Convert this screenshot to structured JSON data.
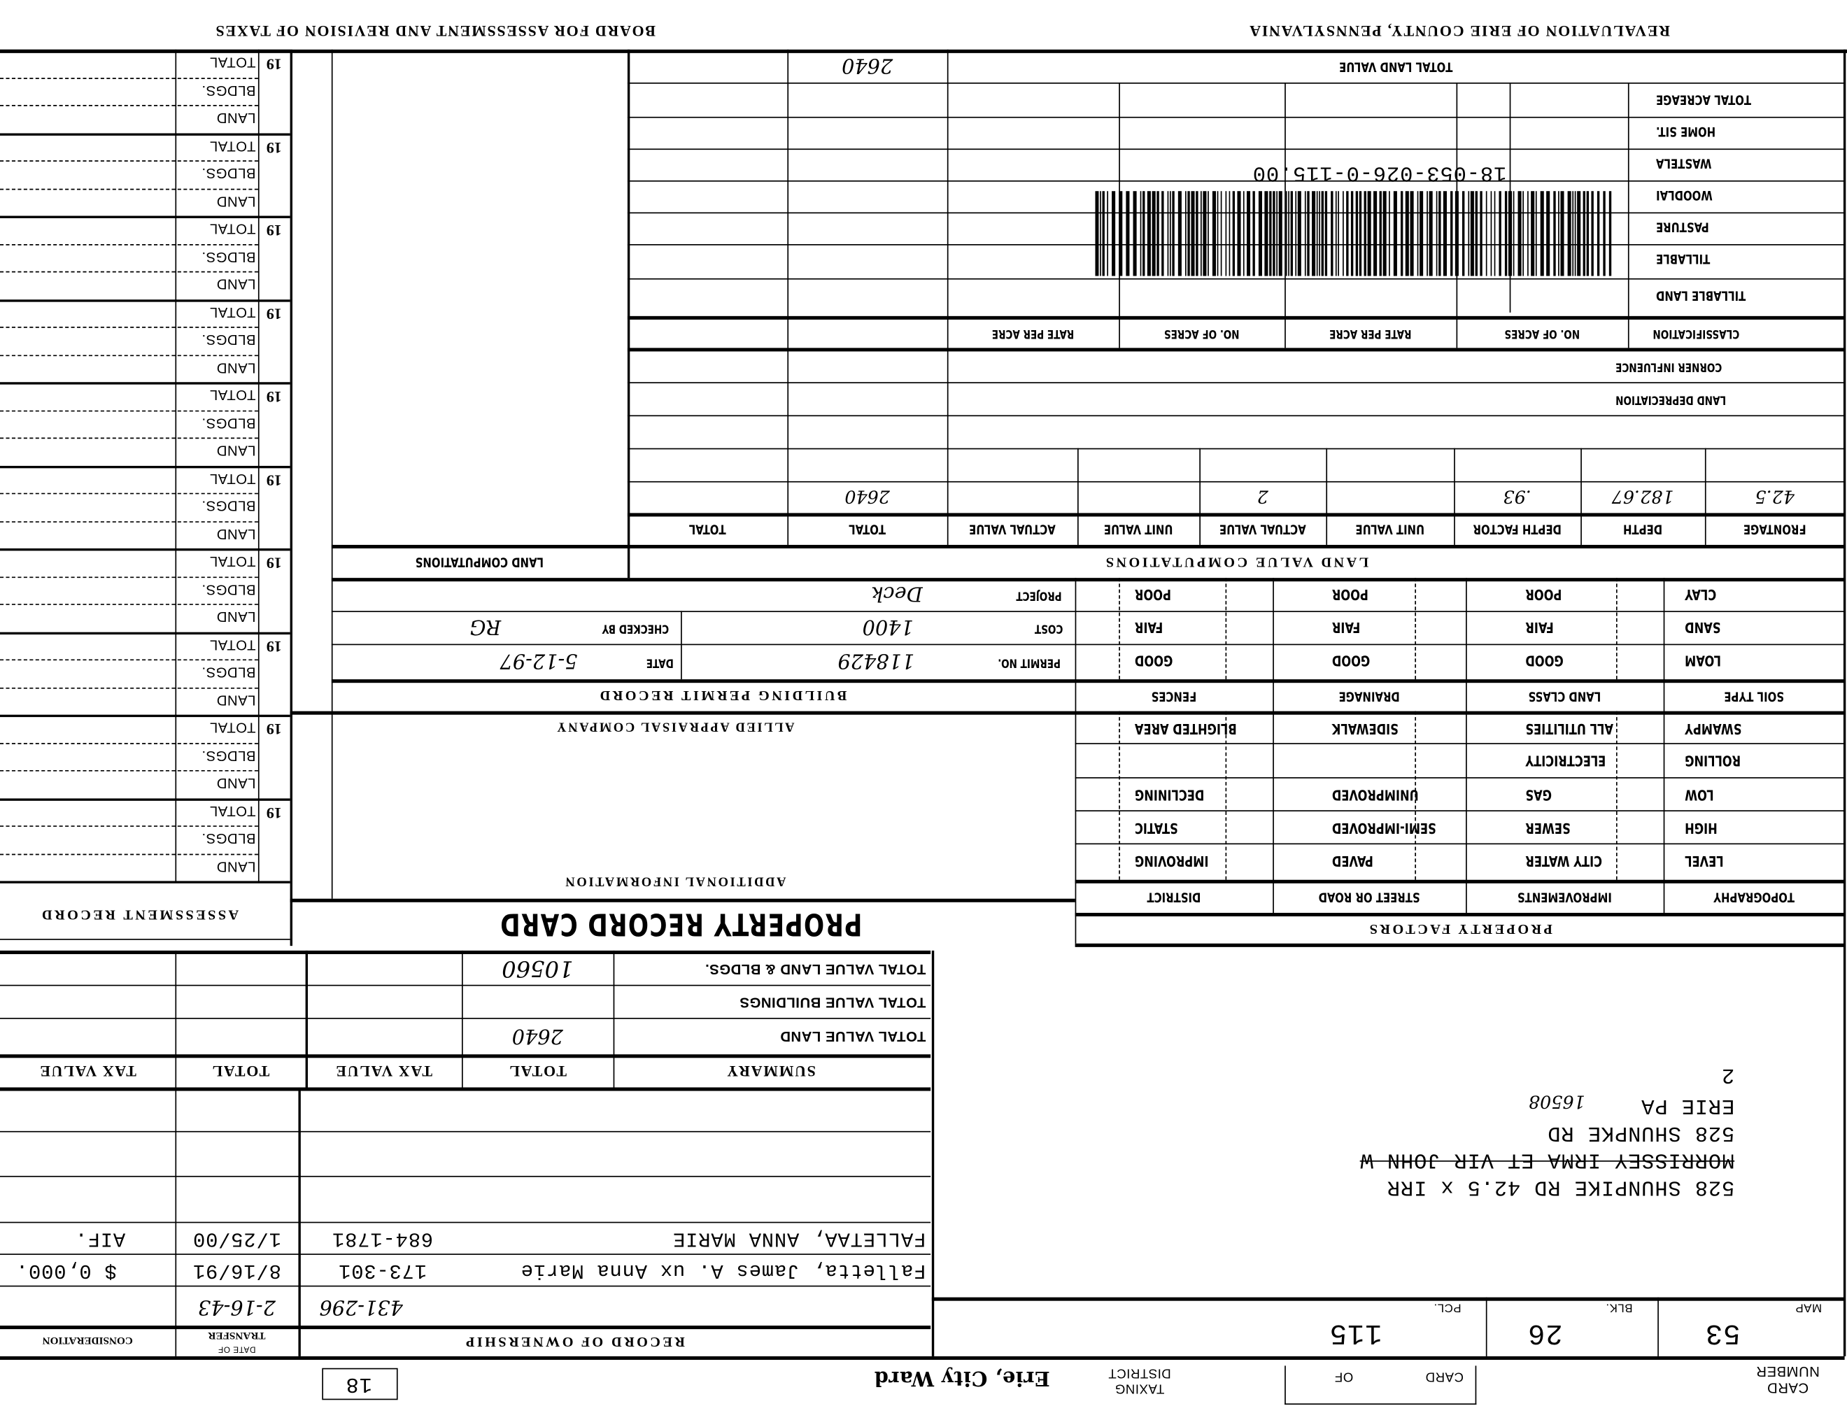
{
  "header": {
    "left_title": "BOARD FOR ASSESSMENT AND REVISION OF TAXES",
    "right_title": "REVALUATION OF ERIE COUNTY, PENNSYLVANIA"
  },
  "assessment_record": {
    "title": "ASSESSMENT  RECORD",
    "row_labels": [
      "TOTAL",
      "BLDGS.",
      "LAND"
    ],
    "groups": [
      {
        "year": "19"
      },
      {
        "year": "19"
      },
      {
        "year": "19"
      },
      {
        "year": "19"
      },
      {
        "year": "19"
      },
      {
        "year": "19"
      },
      {
        "year": "19"
      },
      {
        "year": "19"
      },
      {
        "year": "19"
      },
      {
        "year": "19"
      }
    ]
  },
  "land": {
    "total_land_value_label": "TOTAL LAND VALUE",
    "total_land_value": "2640",
    "acreage_rows": [
      "TOTAL ACREAGE",
      "HOME SIT.",
      "WASTELA",
      "WOODLAI",
      "PASTURE",
      "TILLABLE",
      "TILLABLE LAND"
    ],
    "classification_headers": [
      "CLASSIFICATION",
      "NO. OF ACRES",
      "RATE PER ACRE",
      "NO. OF ACRES",
      "RATE PER ACRE"
    ],
    "corner_influence": "CORNER INFLUENCE",
    "land_depreciation": "LAND DEPRECIATION",
    "parcel_id": "18-053-026-0-115.00",
    "land_computations_title": "LAND COMPUTATIONS",
    "value_computations_title": "LAND  VALUE  COMPUTATIONS",
    "computation_columns": [
      "FRONTAGE",
      "DEPTH",
      "DEPTH FACTOR",
      "UNIT VALUE",
      "ACTUAL VALUE",
      "UNIT VALUE",
      "ACTUAL VALUE",
      "TOTAL",
      "TOTAL"
    ],
    "computation_row": {
      "frontage": "42.5",
      "depth": "182.67",
      "depth_factor": ".93",
      "actual_value": "2",
      "total": "2640"
    }
  },
  "property_factors": {
    "title": "PROPERTY  FACTORS",
    "soil_headers": [
      "SOIL TYPE",
      "LAND CLASS",
      "DRAINAGE",
      "FENCES"
    ],
    "soil_rows": [
      [
        "CLAY",
        "POOR",
        "POOR",
        "POOR"
      ],
      [
        "SAND",
        "FAIR",
        "FAIR",
        "FAIR"
      ],
      [
        "LOAM",
        "GOOD",
        "GOOD",
        "GOOD"
      ]
    ],
    "topo_headers": [
      "TOPOGRAPHY",
      "IMPROVEMENTS",
      "STREET OR ROAD",
      "DISTRICT"
    ],
    "topo_rows": [
      [
        "SWAMPY",
        "ALL UTILITIES",
        "SIDEWALK",
        "BLIGHTED AREA"
      ],
      [
        "ROLLING",
        "ELECTRICITY",
        "",
        ""
      ],
      [
        "LOW",
        "GAS",
        "UNIMPROVED",
        "DECLINING"
      ],
      [
        "HIGH",
        "SEWER",
        "SEMI-IMPROVED",
        "STATIC"
      ],
      [
        "LEVEL",
        "CITY WATER",
        "PAVED",
        "IMPROVING"
      ]
    ]
  },
  "building_permit": {
    "title": "BUILDING  PERMIT  RECORD",
    "permit_no_label": "PERMIT NO.",
    "permit_no": "118429",
    "date_label": "DATE",
    "date": "5-12-97",
    "cost_label": "COST",
    "cost": "1400",
    "checked_by_label": "CHECKED BY",
    "checked_by": "RG",
    "project_label": "PROJECT",
    "project": "Deck"
  },
  "additional_info": {
    "title": "ADDITIONAL  INFORMATION",
    "company": "ALLIED APPRAISAL COMPANY"
  },
  "card_title": "PROPERTY RECORD CARD",
  "summary": {
    "headers": [
      "SUMMARY",
      "TOTAL",
      "TAX VALUE",
      "TOTAL",
      "TAX VALUE"
    ],
    "rows": [
      {
        "label": "TOTAL VALUE LAND",
        "total": "2640"
      },
      {
        "label": "TOTAL VALUE BUILDINGS",
        "total": ""
      },
      {
        "label": "TOTAL VALUE LAND & BLDGS.",
        "total": "10560"
      }
    ]
  },
  "ownership": {
    "title": "RECORD  OF  OWNERSHIP",
    "date_header_top": "DATE OF",
    "date_header": "TRANSFER",
    "consideration_header": "CONSIDERATION",
    "records": [
      {
        "owner": "",
        "deed": "431-296",
        "date": "2-16-43",
        "consideration": ""
      },
      {
        "owner": "Falletta, James A. ux Anna Marie",
        "deed": "173-301",
        "date": "8/16/91",
        "consideration": "$ 0,000."
      },
      {
        "owner": "FALLETAA, ANNA MARIE",
        "deed": "684-1781",
        "date": "1/25/00",
        "consideration": "AIF."
      }
    ]
  },
  "address": {
    "location": "528 SHUNPIKE RD 42.5 x IRR",
    "former_owner": "MORRISSEY IRMA ET VIR JOHN W",
    "mailing_street": "528 SHUNPKE RD",
    "mailing_city": "ERIE PA",
    "mailing_zip": "16508",
    "line_number": "2"
  },
  "parcel": {
    "map_label": "MAP",
    "map": "53",
    "blk_label": "BLK.",
    "blk": "26",
    "pcl_label": "PCL.",
    "pcl": "115"
  },
  "footer": {
    "card_number_label_1": "CARD",
    "card_number_label_2": "NUMBER",
    "card_label": "CARD",
    "of_label": "OF",
    "taxing_label_1": "TAXING",
    "taxing_label_2": "DISTRICT",
    "taxing_district": "Erie, City Ward",
    "box_number": "18"
  }
}
